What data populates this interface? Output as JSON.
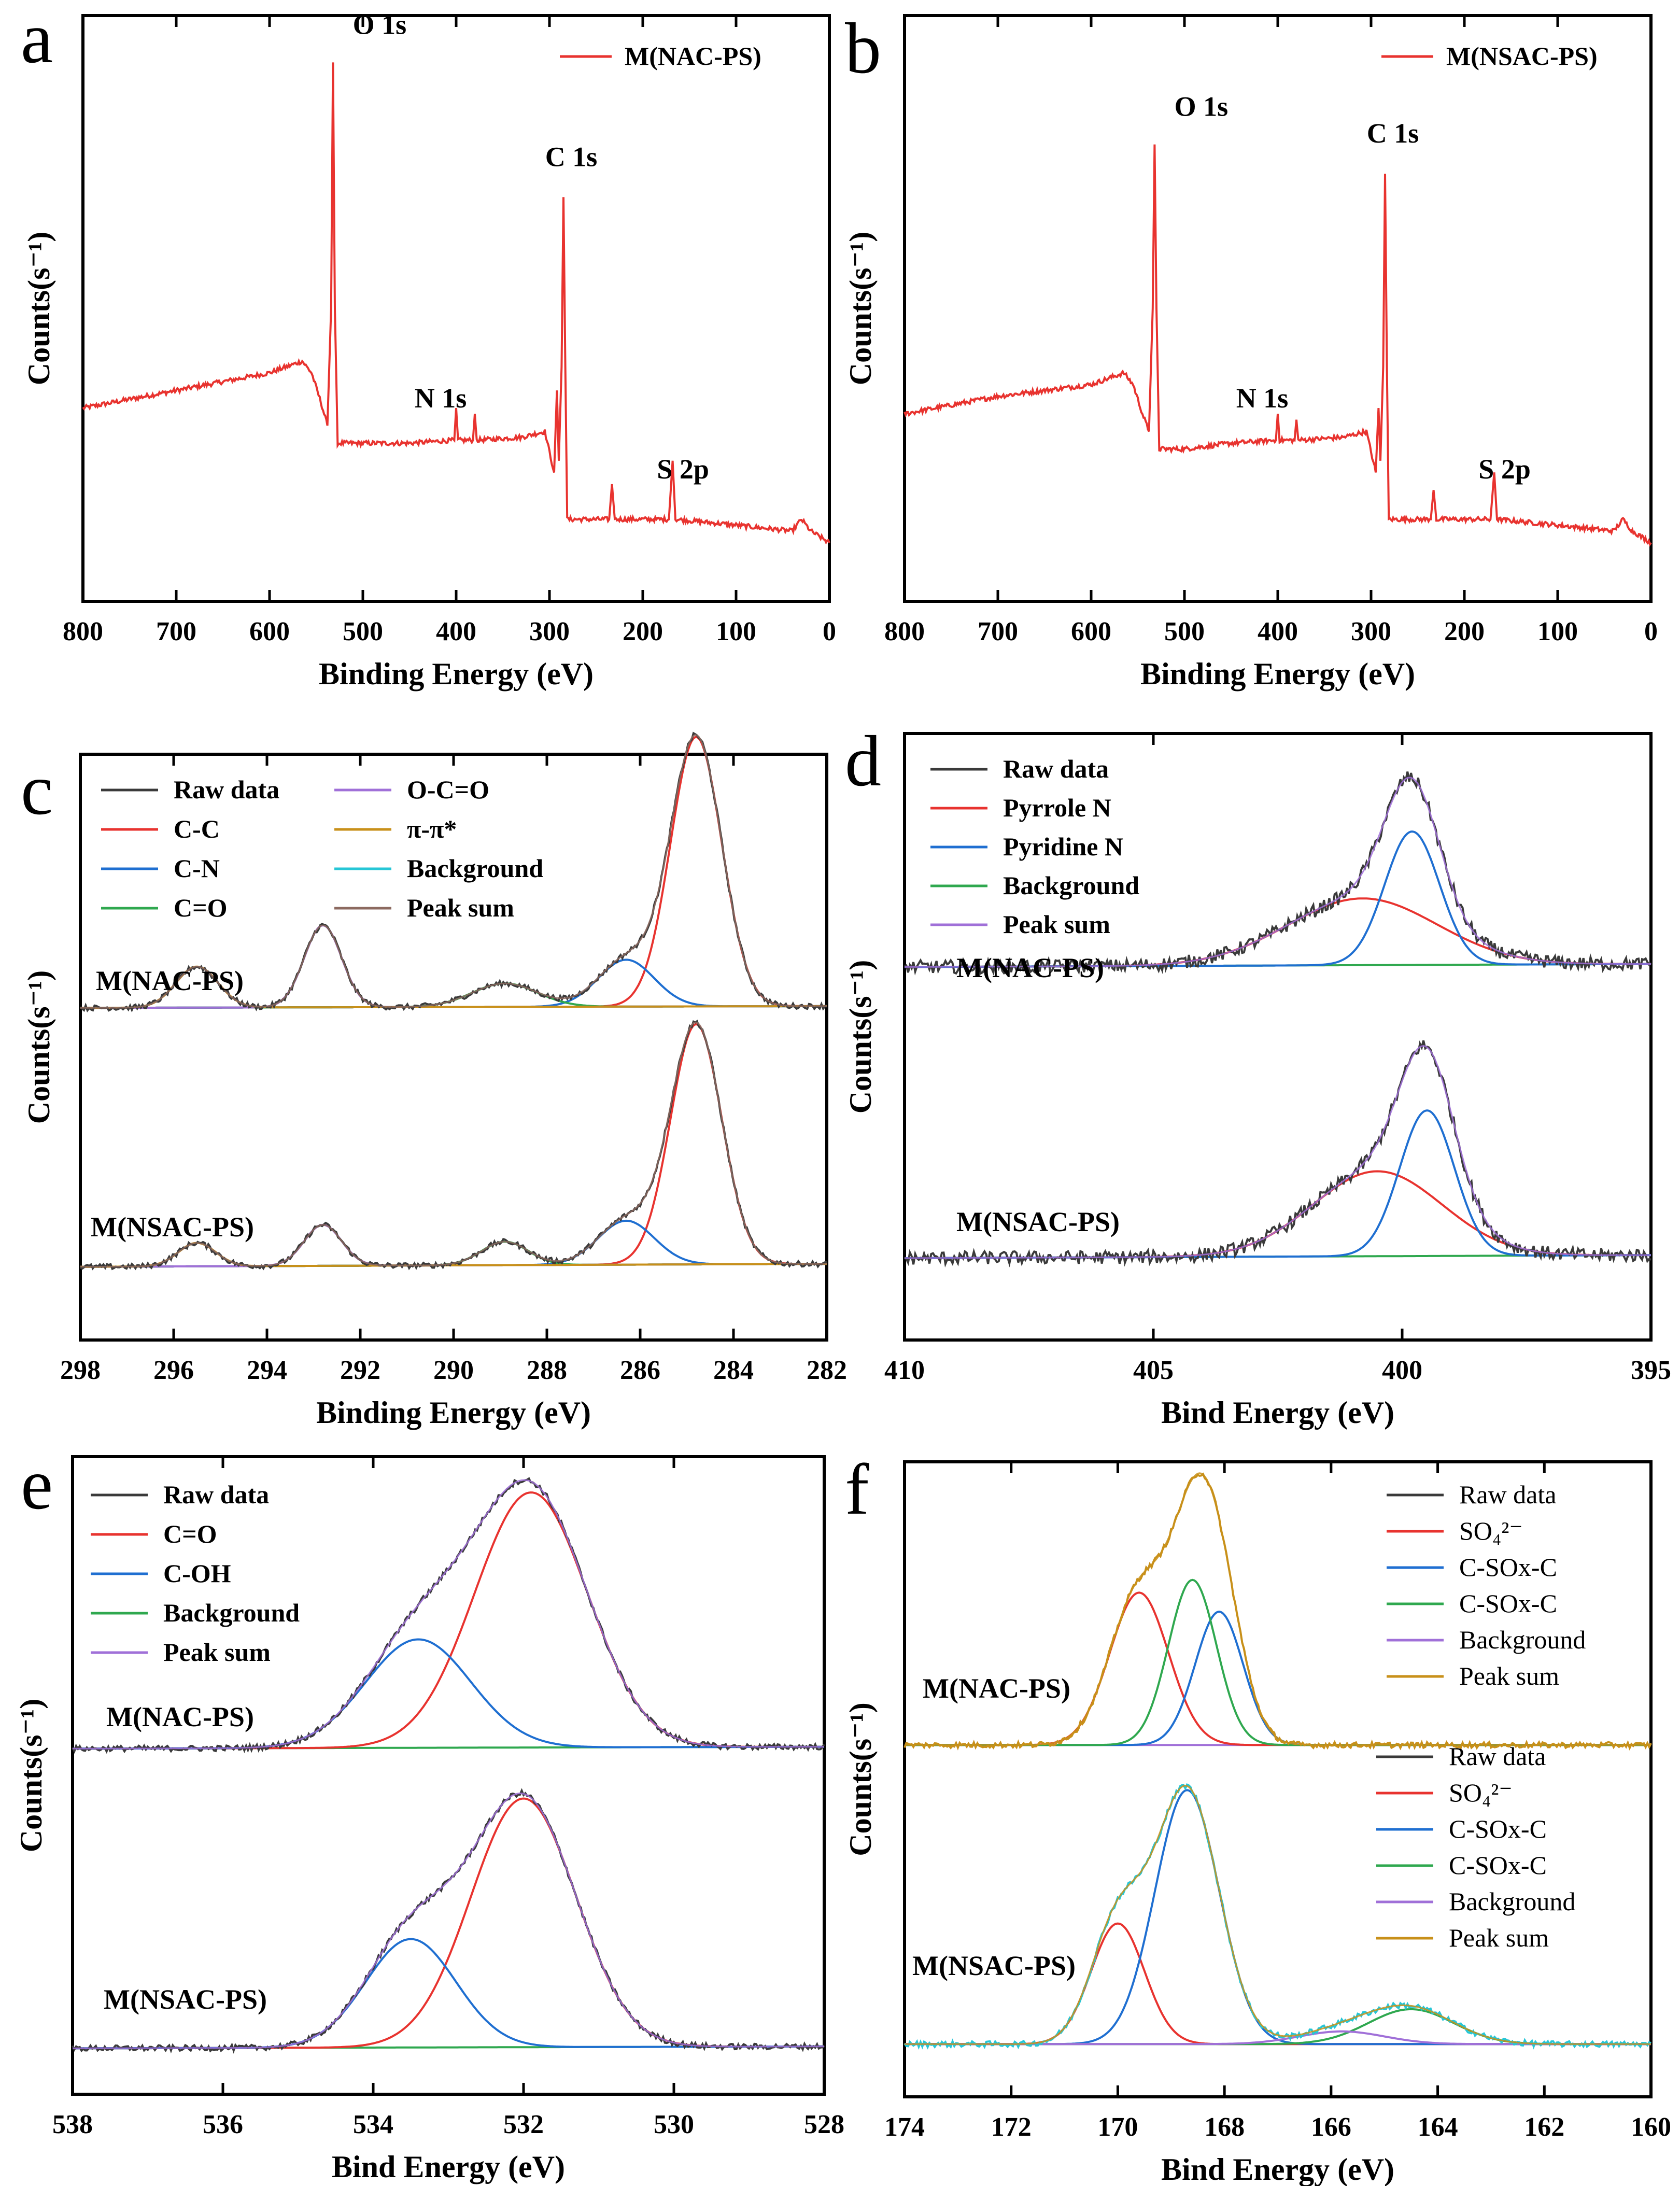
{
  "colors": {
    "raw": "#3a3a3a",
    "red": "#e8332f",
    "blue": "#1f6fd1",
    "green": "#2fa84f",
    "purple": "#a070d8",
    "orange": "#c8901a",
    "cyan": "#26c6d6",
    "peaksum_c": "#8c6a60",
    "survey": "#e8332f"
  },
  "chart_data": [
    {
      "panel": "a",
      "type": "line",
      "xlabel": "Binding Energy (eV)",
      "ylabel": "Counts(s⁻¹)",
      "xlim": [
        800,
        0
      ],
      "xticks": [
        800,
        700,
        600,
        500,
        400,
        300,
        200,
        100,
        0
      ],
      "ylim": [
        0,
        100
      ],
      "legend": [
        "M(NAC-PS)"
      ],
      "peaks": [
        {
          "label": "O 1s",
          "x": 532,
          "y": 92
        },
        {
          "label": "C 1s",
          "x": 285,
          "y": 69
        },
        {
          "label": "N 1s",
          "x": 400,
          "y": 30
        },
        {
          "label": "S 2p",
          "x": 168,
          "y": 17
        }
      ],
      "series": [
        {
          "name": "M(NAC-PS)",
          "points": [
            [
              800,
              33
            ],
            [
              700,
              36
            ],
            [
              600,
              39
            ],
            [
              565,
              41
            ],
            [
              555,
              39
            ],
            [
              545,
              34
            ],
            [
              538,
              30
            ],
            [
              534,
              50
            ],
            [
              532,
              92
            ],
            [
              530,
              50
            ],
            [
              527,
              27
            ],
            [
              500,
              27
            ],
            [
              450,
              27
            ],
            [
              402,
              27.5
            ],
            [
              400,
              33
            ],
            [
              398,
              27.5
            ],
            [
              382,
              27.5
            ],
            [
              380,
              32
            ],
            [
              378,
              27.5
            ],
            [
              330,
              28
            ],
            [
              305,
              29
            ],
            [
              295,
              22
            ],
            [
              292,
              36
            ],
            [
              290,
              24
            ],
            [
              287,
              40
            ],
            [
              285,
              69
            ],
            [
              283,
              40
            ],
            [
              281,
              14
            ],
            [
              260,
              14
            ],
            [
              236,
              14
            ],
            [
              233,
              20
            ],
            [
              230,
              14
            ],
            [
              172,
              14
            ],
            [
              168,
              24
            ],
            [
              165,
              14
            ],
            [
              100,
              13
            ],
            [
              40,
              12
            ],
            [
              30,
              14
            ],
            [
              20,
              12
            ],
            [
              0,
              10
            ]
          ]
        }
      ]
    },
    {
      "panel": "b",
      "type": "line",
      "xlabel": "Binding Energy (eV)",
      "ylabel": "Counts(s⁻¹)",
      "xlim": [
        800,
        0
      ],
      "xticks": [
        800,
        700,
        600,
        500,
        400,
        300,
        200,
        100,
        0
      ],
      "ylim": [
        0,
        100
      ],
      "legend": [
        "M(NSAC-PS)"
      ],
      "peaks": [
        {
          "label": "O 1s",
          "x": 532,
          "y": 78
        },
        {
          "label": "C 1s",
          "x": 285,
          "y": 73
        },
        {
          "label": "N 1s",
          "x": 400,
          "y": 30
        },
        {
          "label": "S 2p",
          "x": 168,
          "y": 17
        }
      ],
      "series": [
        {
          "name": "M(NSAC-PS)",
          "points": [
            [
              800,
              32
            ],
            [
              700,
              35
            ],
            [
              600,
              37
            ],
            [
              565,
              39
            ],
            [
              555,
              37
            ],
            [
              545,
              32
            ],
            [
              538,
              29
            ],
            [
              534,
              50
            ],
            [
              532,
              78
            ],
            [
              530,
              50
            ],
            [
              527,
              26
            ],
            [
              500,
              26
            ],
            [
              450,
              27
            ],
            [
              402,
              27.5
            ],
            [
              400,
              32
            ],
            [
              398,
              27.5
            ],
            [
              382,
              27.5
            ],
            [
              380,
              31
            ],
            [
              378,
              27.5
            ],
            [
              330,
              28
            ],
            [
              305,
              29
            ],
            [
              295,
              22
            ],
            [
              292,
              33
            ],
            [
              290,
              24
            ],
            [
              287,
              40
            ],
            [
              285,
              73
            ],
            [
              283,
              40
            ],
            [
              281,
              14
            ],
            [
              260,
              14
            ],
            [
              236,
              14
            ],
            [
              233,
              19
            ],
            [
              230,
              14
            ],
            [
              172,
              14
            ],
            [
              168,
              22
            ],
            [
              165,
              14
            ],
            [
              100,
              13
            ],
            [
              40,
              12
            ],
            [
              30,
              14
            ],
            [
              20,
              12
            ],
            [
              0,
              10
            ]
          ]
        }
      ]
    },
    {
      "panel": "c",
      "type": "line",
      "xlabel": "Binding Energy (eV)",
      "ylabel": "Counts(s⁻¹)",
      "xlim": [
        298,
        282
      ],
      "xticks": [
        298,
        296,
        294,
        292,
        290,
        288,
        286,
        284,
        282
      ],
      "ylim": [
        0,
        100
      ],
      "legend": [
        "Raw data",
        "C-C",
        "C-N",
        "C=O",
        "O-C=O",
        "π-π*",
        "Background",
        "Peak sum"
      ],
      "series_labels": [
        "M(NAC-PS)",
        "M(NSAC-PS)"
      ],
      "fits": [
        {
          "offset": 56,
          "bg": [
            1.0,
            -0.3
          ],
          "components": [
            {
              "name": "C-C",
              "center": 284.8,
              "height": 46,
              "width": 0.55
            },
            {
              "name": "C-N",
              "center": 286.3,
              "height": 8,
              "width": 0.6
            },
            {
              "name": "C=O",
              "center": 288.9,
              "height": 4,
              "width": 0.7
            },
            {
              "name": "O-C=O",
              "center": 292.8,
              "height": 14,
              "width": 0.4
            },
            {
              "name": "π-π*",
              "center": 295.5,
              "height": 7,
              "width": 0.45
            }
          ]
        },
        {
          "offset": 12,
          "bg": [
            1.0,
            -0.5
          ],
          "components": [
            {
              "name": "C-C",
              "center": 284.8,
              "height": 41,
              "width": 0.55
            },
            {
              "name": "C-N",
              "center": 286.3,
              "height": 7.5,
              "width": 0.6
            },
            {
              "name": "C=O",
              "center": 288.9,
              "height": 4,
              "width": 0.5
            },
            {
              "name": "O-C=O",
              "center": 292.8,
              "height": 7,
              "width": 0.4
            },
            {
              "name": "π-π*",
              "center": 295.5,
              "height": 4,
              "width": 0.4
            }
          ]
        }
      ]
    },
    {
      "panel": "d",
      "type": "line",
      "xlabel": "Bind Energy (eV)",
      "ylabel": "Counts(s⁻¹)",
      "xlim": [
        410,
        395
      ],
      "xticks": [
        410,
        405,
        400,
        395
      ],
      "ylim": [
        0,
        100
      ],
      "legend": [
        "Raw data",
        "Pyrrole N",
        "Pyridine N",
        "Background",
        "Peak sum"
      ],
      "series_labels": [
        "M(NAC-PS)",
        "M(NSAC-PS)"
      ],
      "fits": [
        {
          "offset": 60,
          "bg": [
            2.0,
            -0.5
          ],
          "components": [
            {
              "name": "Pyrrole N",
              "center": 400.8,
              "height": 11,
              "width": 1.5
            },
            {
              "name": "Pyridine N",
              "center": 399.8,
              "height": 22,
              "width": 0.55
            }
          ]
        },
        {
          "offset": 13,
          "bg": [
            1.0,
            -0.5
          ],
          "components": [
            {
              "name": "Pyrrole N",
              "center": 400.5,
              "height": 14,
              "width": 1.3
            },
            {
              "name": "Pyridine N",
              "center": 399.5,
              "height": 24,
              "width": 0.55
            }
          ]
        }
      ]
    },
    {
      "panel": "e",
      "type": "line",
      "xlabel": "Bind Energy (eV)",
      "ylabel": "Counts(s⁻¹)",
      "xlim": [
        538,
        528
      ],
      "xticks": [
        538,
        536,
        534,
        532,
        530,
        528
      ],
      "ylim": [
        0,
        100
      ],
      "legend": [
        "Raw data",
        "C=O",
        "C-OH",
        "Background",
        "Peak sum"
      ],
      "series_labels": [
        "M(NAC-PS)",
        "M(NSAC-PS)"
      ],
      "fits": [
        {
          "offset": 54,
          "bg": [
            0.5,
            -0.3
          ],
          "components": [
            {
              "name": "C=O",
              "center": 531.9,
              "height": 40,
              "width": 0.75
            },
            {
              "name": "C-OH",
              "center": 533.4,
              "height": 17,
              "width": 0.7
            }
          ]
        },
        {
          "offset": 7,
          "bg": [
            0.5,
            -0.3
          ],
          "components": [
            {
              "name": "C=O",
              "center": 532.0,
              "height": 39,
              "width": 0.7
            },
            {
              "name": "C-OH",
              "center": 533.5,
              "height": 17,
              "width": 0.6
            }
          ]
        }
      ]
    },
    {
      "panel": "f",
      "type": "line",
      "xlabel": "Bind Energy (eV)",
      "ylabel": "Counts(s⁻¹)",
      "xlim": [
        174,
        160
      ],
      "xticks": [
        174,
        172,
        170,
        168,
        166,
        164,
        162,
        160
      ],
      "ylim": [
        0,
        100
      ],
      "legend_top": [
        "Raw data",
        "SO₄²⁻",
        "C-SOx-C",
        "C-SOx-C",
        "Background",
        "Peak sum"
      ],
      "legend_bottom": [
        "Raw data",
        "SO₄²⁻",
        "C-SOx-C",
        "C-SOx-C",
        "Background",
        "Peak sum"
      ],
      "series_labels": [
        "M(NAC-PS)",
        "M(NSAC-PS)"
      ],
      "fits": [
        {
          "offset": 55,
          "bg": [
            0.4,
            0
          ],
          "components": [
            {
              "name": "SO₄²⁻",
              "center": 169.6,
              "height": 24,
              "width": 0.55
            },
            {
              "name": "C-SOx-C (blue)",
              "center": 168.1,
              "height": 21,
              "width": 0.45
            },
            {
              "name": "C-SOx-C (green)",
              "center": 168.6,
              "height": 26,
              "width": 0.45
            }
          ]
        },
        {
          "offset": 8,
          "bg": [
            0.3,
            0
          ],
          "components": [
            {
              "name": "SO₄²⁻",
              "center": 170.0,
              "height": 19,
              "width": 0.5
            },
            {
              "name": "C-SOx-C (blue)",
              "center": 168.7,
              "height": 40,
              "width": 0.6
            },
            {
              "name": "C-SOx-C (green)",
              "center": 164.5,
              "height": 5.5,
              "width": 0.8
            },
            {
              "name": "Background",
              "center": 165.8,
              "height": 2,
              "width": 0.8
            }
          ]
        }
      ]
    }
  ]
}
